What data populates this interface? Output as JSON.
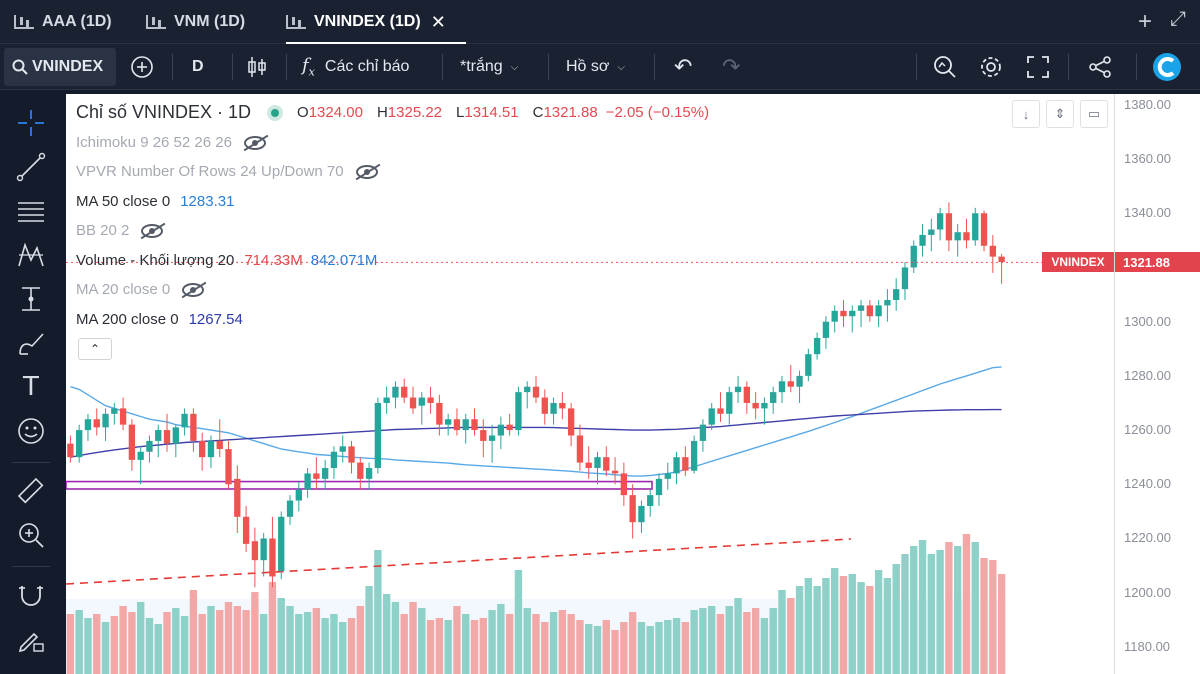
{
  "tabs": [
    {
      "label": "AAA (1D)",
      "active": false
    },
    {
      "label": "VNM (1D)",
      "active": false
    },
    {
      "label": "VNINDEX (1D)",
      "active": true
    }
  ],
  "tab_actions": {
    "add": "+",
    "expand": "⤢"
  },
  "toolbar": {
    "symbol": "VNINDEX",
    "interval": "D",
    "indicators_label": "Các chỉ báo",
    "theme_label": "*trắng",
    "profile_label": "Hồ sơ"
  },
  "legend": {
    "title": "Chỉ số VNINDEX · 1D",
    "open_key": "O",
    "open": "1324.00",
    "high_key": "H",
    "high": "1325.22",
    "low_key": "L",
    "low": "1314.51",
    "close_key": "C",
    "close": "1321.88",
    "change": "−2.05 (−0.15%)",
    "ichimoku": "Ichimoku 9 26 52 26 26",
    "vpvr": "VPVR Number Of Rows 24 Up/Down 70",
    "ma50_label": "MA 50 close 0",
    "ma50_value": "1283.31",
    "bb": "BB 20 2",
    "volume_label": "Volume - Khối lượng 20",
    "volume_value": "714.33M",
    "volume_ma": "842.071M",
    "ma20": "MA 20 close 0",
    "ma200_label": "MA 200 close 0",
    "ma200_value": "1267.54",
    "collapse": "⌃"
  },
  "price_axis": {
    "ticks": [
      "1380.00",
      "1360.00",
      "1340.00",
      "1320.00",
      "1300.00",
      "1280.00",
      "1260.00",
      "1240.00",
      "1220.00",
      "1200.00",
      "1180.00"
    ],
    "last_name": "VNINDEX",
    "last_value": "1321.88"
  },
  "colors": {
    "up": "#26a69a",
    "down": "#ef5350",
    "ma50": "#5aa9e6",
    "ma200": "#3f3fa8",
    "zone": "#9c27b0",
    "trend": "#e53935"
  },
  "chart_data": {
    "type": "candlestick",
    "title": "Chỉ số VNINDEX · 1D",
    "ylim": [
      1170,
      1384
    ],
    "candles": [
      [
        1255,
        1258,
        1248,
        1250
      ],
      [
        1250,
        1262,
        1248,
        1260
      ],
      [
        1260,
        1266,
        1256,
        1264
      ],
      [
        1264,
        1268,
        1258,
        1261
      ],
      [
        1261,
        1268,
        1256,
        1266
      ],
      [
        1266,
        1270,
        1262,
        1268
      ],
      [
        1268,
        1272,
        1260,
        1262
      ],
      [
        1262,
        1264,
        1245,
        1249
      ],
      [
        1249,
        1254,
        1240,
        1252
      ],
      [
        1252,
        1258,
        1248,
        1256
      ],
      [
        1256,
        1262,
        1250,
        1260
      ],
      [
        1260,
        1266,
        1252,
        1255
      ],
      [
        1255,
        1262,
        1250,
        1261
      ],
      [
        1261,
        1268,
        1258,
        1266
      ],
      [
        1266,
        1268,
        1252,
        1256
      ],
      [
        1256,
        1259,
        1245,
        1250
      ],
      [
        1250,
        1258,
        1246,
        1256
      ],
      [
        1256,
        1264,
        1250,
        1253
      ],
      [
        1253,
        1256,
        1238,
        1240
      ],
      [
        1242,
        1247,
        1222,
        1228
      ],
      [
        1228,
        1232,
        1215,
        1218
      ],
      [
        1219,
        1224,
        1202,
        1212
      ],
      [
        1212,
        1222,
        1206,
        1220
      ],
      [
        1220,
        1228,
        1202,
        1206
      ],
      [
        1208,
        1230,
        1205,
        1228
      ],
      [
        1228,
        1236,
        1225,
        1234
      ],
      [
        1234,
        1241,
        1230,
        1238
      ],
      [
        1238,
        1246,
        1235,
        1244
      ],
      [
        1244,
        1250,
        1238,
        1242
      ],
      [
        1242,
        1249,
        1238,
        1246
      ],
      [
        1246,
        1254,
        1242,
        1252
      ],
      [
        1252,
        1258,
        1248,
        1254
      ],
      [
        1254,
        1256,
        1244,
        1248
      ],
      [
        1248,
        1250,
        1238,
        1242
      ],
      [
        1242,
        1248,
        1238,
        1246
      ],
      [
        1246,
        1272,
        1244,
        1270
      ],
      [
        1270,
        1276,
        1266,
        1272
      ],
      [
        1272,
        1278,
        1268,
        1276
      ],
      [
        1276,
        1279,
        1270,
        1272
      ],
      [
        1272,
        1276,
        1266,
        1268
      ],
      [
        1269,
        1274,
        1262,
        1272
      ],
      [
        1272,
        1276,
        1266,
        1270
      ],
      [
        1270,
        1273,
        1258,
        1262
      ],
      [
        1262,
        1266,
        1258,
        1264
      ],
      [
        1264,
        1268,
        1258,
        1260
      ],
      [
        1260,
        1266,
        1255,
        1264
      ],
      [
        1264,
        1268,
        1258,
        1260
      ],
      [
        1260,
        1264,
        1250,
        1256
      ],
      [
        1256,
        1262,
        1248,
        1258
      ],
      [
        1258,
        1265,
        1253,
        1262
      ],
      [
        1262,
        1266,
        1258,
        1260
      ],
      [
        1260,
        1276,
        1258,
        1274
      ],
      [
        1274,
        1278,
        1268,
        1276
      ],
      [
        1276,
        1280,
        1270,
        1272
      ],
      [
        1272,
        1275,
        1262,
        1266
      ],
      [
        1266,
        1272,
        1262,
        1270
      ],
      [
        1270,
        1274,
        1264,
        1268
      ],
      [
        1268,
        1270,
        1254,
        1258
      ],
      [
        1258,
        1262,
        1245,
        1248
      ],
      [
        1248,
        1254,
        1242,
        1246
      ],
      [
        1246,
        1252,
        1240,
        1250
      ],
      [
        1250,
        1254,
        1243,
        1245
      ],
      [
        1245,
        1250,
        1240,
        1244
      ],
      [
        1244,
        1248,
        1232,
        1236
      ],
      [
        1236,
        1240,
        1220,
        1226
      ],
      [
        1226,
        1234,
        1222,
        1232
      ],
      [
        1232,
        1238,
        1228,
        1236
      ],
      [
        1236,
        1244,
        1232,
        1242
      ],
      [
        1242,
        1248,
        1238,
        1244
      ],
      [
        1244,
        1252,
        1240,
        1250
      ],
      [
        1250,
        1254,
        1243,
        1245
      ],
      [
        1245,
        1258,
        1244,
        1256
      ],
      [
        1256,
        1264,
        1252,
        1262
      ],
      [
        1262,
        1270,
        1260,
        1268
      ],
      [
        1268,
        1274,
        1263,
        1266
      ],
      [
        1266,
        1276,
        1262,
        1274
      ],
      [
        1274,
        1280,
        1270,
        1276
      ],
      [
        1276,
        1278,
        1266,
        1270
      ],
      [
        1270,
        1274,
        1264,
        1268
      ],
      [
        1268,
        1272,
        1262,
        1270
      ],
      [
        1270,
        1276,
        1266,
        1274
      ],
      [
        1274,
        1280,
        1270,
        1278
      ],
      [
        1278,
        1284,
        1274,
        1276
      ],
      [
        1276,
        1282,
        1270,
        1280
      ],
      [
        1280,
        1290,
        1278,
        1288
      ],
      [
        1288,
        1296,
        1286,
        1294
      ],
      [
        1294,
        1302,
        1290,
        1300
      ],
      [
        1300,
        1306,
        1296,
        1304
      ],
      [
        1304,
        1308,
        1298,
        1302
      ],
      [
        1302,
        1306,
        1296,
        1304
      ],
      [
        1304,
        1308,
        1298,
        1306
      ],
      [
        1306,
        1308,
        1300,
        1302
      ],
      [
        1302,
        1308,
        1298,
        1306
      ],
      [
        1306,
        1312,
        1300,
        1308
      ],
      [
        1308,
        1316,
        1304,
        1312
      ],
      [
        1312,
        1322,
        1308,
        1320
      ],
      [
        1320,
        1330,
        1318,
        1328
      ],
      [
        1328,
        1336,
        1324,
        1332
      ],
      [
        1332,
        1338,
        1326,
        1334
      ],
      [
        1334,
        1342,
        1330,
        1340
      ],
      [
        1340,
        1344,
        1326,
        1330
      ],
      [
        1330,
        1336,
        1324,
        1333
      ],
      [
        1333,
        1338,
        1327,
        1330
      ],
      [
        1330,
        1342,
        1328,
        1340
      ],
      [
        1340,
        1341,
        1326,
        1328
      ],
      [
        1328,
        1332,
        1318,
        1324
      ],
      [
        1324,
        1325,
        1314,
        1322
      ]
    ],
    "volume": [
      {
        "v": 0.3,
        "up": false
      },
      {
        "v": 0.32,
        "up": true
      },
      {
        "v": 0.28,
        "up": true
      },
      {
        "v": 0.3,
        "up": false
      },
      {
        "v": 0.26,
        "up": true
      },
      {
        "v": 0.29,
        "up": false
      },
      {
        "v": 0.34,
        "up": false
      },
      {
        "v": 0.31,
        "up": false
      },
      {
        "v": 0.36,
        "up": true
      },
      {
        "v": 0.28,
        "up": true
      },
      {
        "v": 0.25,
        "up": true
      },
      {
        "v": 0.31,
        "up": false
      },
      {
        "v": 0.33,
        "up": true
      },
      {
        "v": 0.29,
        "up": true
      },
      {
        "v": 0.42,
        "up": false
      },
      {
        "v": 0.3,
        "up": false
      },
      {
        "v": 0.34,
        "up": true
      },
      {
        "v": 0.32,
        "up": false
      },
      {
        "v": 0.36,
        "up": false
      },
      {
        "v": 0.34,
        "up": false
      },
      {
        "v": 0.32,
        "up": false
      },
      {
        "v": 0.41,
        "up": false
      },
      {
        "v": 0.3,
        "up": true
      },
      {
        "v": 0.46,
        "up": false
      },
      {
        "v": 0.38,
        "up": true
      },
      {
        "v": 0.34,
        "up": true
      },
      {
        "v": 0.3,
        "up": true
      },
      {
        "v": 0.31,
        "up": true
      },
      {
        "v": 0.33,
        "up": false
      },
      {
        "v": 0.28,
        "up": true
      },
      {
        "v": 0.3,
        "up": true
      },
      {
        "v": 0.26,
        "up": true
      },
      {
        "v": 0.28,
        "up": false
      },
      {
        "v": 0.34,
        "up": false
      },
      {
        "v": 0.44,
        "up": true
      },
      {
        "v": 0.62,
        "up": true
      },
      {
        "v": 0.4,
        "up": true
      },
      {
        "v": 0.36,
        "up": true
      },
      {
        "v": 0.3,
        "up": false
      },
      {
        "v": 0.36,
        "up": false
      },
      {
        "v": 0.33,
        "up": true
      },
      {
        "v": 0.27,
        "up": false
      },
      {
        "v": 0.28,
        "up": false
      },
      {
        "v": 0.27,
        "up": true
      },
      {
        "v": 0.34,
        "up": false
      },
      {
        "v": 0.3,
        "up": true
      },
      {
        "v": 0.27,
        "up": false
      },
      {
        "v": 0.28,
        "up": false
      },
      {
        "v": 0.32,
        "up": true
      },
      {
        "v": 0.35,
        "up": true
      },
      {
        "v": 0.3,
        "up": false
      },
      {
        "v": 0.52,
        "up": true
      },
      {
        "v": 0.33,
        "up": true
      },
      {
        "v": 0.3,
        "up": false
      },
      {
        "v": 0.26,
        "up": false
      },
      {
        "v": 0.31,
        "up": true
      },
      {
        "v": 0.32,
        "up": false
      },
      {
        "v": 0.3,
        "up": false
      },
      {
        "v": 0.27,
        "up": false
      },
      {
        "v": 0.25,
        "up": true
      },
      {
        "v": 0.24,
        "up": true
      },
      {
        "v": 0.27,
        "up": false
      },
      {
        "v": 0.22,
        "up": false
      },
      {
        "v": 0.26,
        "up": false
      },
      {
        "v": 0.31,
        "up": false
      },
      {
        "v": 0.26,
        "up": true
      },
      {
        "v": 0.24,
        "up": true
      },
      {
        "v": 0.26,
        "up": true
      },
      {
        "v": 0.27,
        "up": true
      },
      {
        "v": 0.28,
        "up": true
      },
      {
        "v": 0.26,
        "up": false
      },
      {
        "v": 0.32,
        "up": true
      },
      {
        "v": 0.33,
        "up": true
      },
      {
        "v": 0.34,
        "up": true
      },
      {
        "v": 0.3,
        "up": false
      },
      {
        "v": 0.34,
        "up": true
      },
      {
        "v": 0.38,
        "up": true
      },
      {
        "v": 0.31,
        "up": false
      },
      {
        "v": 0.33,
        "up": false
      },
      {
        "v": 0.28,
        "up": true
      },
      {
        "v": 0.33,
        "up": true
      },
      {
        "v": 0.42,
        "up": true
      },
      {
        "v": 0.38,
        "up": false
      },
      {
        "v": 0.44,
        "up": true
      },
      {
        "v": 0.48,
        "up": true
      },
      {
        "v": 0.44,
        "up": true
      },
      {
        "v": 0.48,
        "up": true
      },
      {
        "v": 0.53,
        "up": true
      },
      {
        "v": 0.49,
        "up": false
      },
      {
        "v": 0.5,
        "up": true
      },
      {
        "v": 0.46,
        "up": true
      },
      {
        "v": 0.44,
        "up": false
      },
      {
        "v": 0.52,
        "up": true
      },
      {
        "v": 0.48,
        "up": true
      },
      {
        "v": 0.55,
        "up": true
      },
      {
        "v": 0.6,
        "up": true
      },
      {
        "v": 0.64,
        "up": true
      },
      {
        "v": 0.67,
        "up": true
      },
      {
        "v": 0.6,
        "up": true
      },
      {
        "v": 0.62,
        "up": true
      },
      {
        "v": 0.66,
        "up": false
      },
      {
        "v": 0.64,
        "up": true
      },
      {
        "v": 0.7,
        "up": false
      },
      {
        "v": 0.66,
        "up": true
      },
      {
        "v": 0.58,
        "up": false
      },
      {
        "v": 0.57,
        "up": false
      },
      {
        "v": 0.5,
        "up": false
      }
    ],
    "ma50": [
      1276,
      1275,
      1273,
      1271,
      1269,
      1268,
      1267,
      1266,
      1265,
      1264,
      1263.5,
      1263,
      1262,
      1261.5,
      1261,
      1260.5,
      1260,
      1259.5,
      1259,
      1258,
      1257,
      1256,
      1255,
      1254,
      1253,
      1252.5,
      1252,
      1251.5,
      1251,
      1250.8,
      1250.5,
      1250.3,
      1250,
      1249.8,
      1249.6,
      1249.5,
      1249.3,
      1249,
      1248.8,
      1248.6,
      1248.4,
      1248.2,
      1248,
      1247.8,
      1247.5,
      1247.2,
      1247,
      1246.8,
      1246.6,
      1246.4,
      1246.2,
      1246,
      1245.8,
      1245.6,
      1245.4,
      1245.2,
      1245,
      1244.8,
      1244.5,
      1244.2,
      1244,
      1243.8,
      1243.5,
      1243.3,
      1243,
      1243,
      1243.2,
      1243.6,
      1244,
      1244.6,
      1245.5,
      1246.5,
      1247.5,
      1248.5,
      1249.5,
      1250.5,
      1251.5,
      1252.5,
      1253.5,
      1254.5,
      1255.5,
      1256.5,
      1257.5,
      1258.5,
      1259.5,
      1260.6,
      1261.7,
      1262.8,
      1263.9,
      1265,
      1266.2,
      1267.4,
      1268.6,
      1269.8,
      1271,
      1272.2,
      1273.4,
      1274.6,
      1275.8,
      1277,
      1278,
      1279,
      1280,
      1281,
      1282,
      1283,
      1283.3
    ],
    "ma200": [
      1250,
      1250.6,
      1251.2,
      1251.7,
      1252.2,
      1252.7,
      1253.1,
      1253.5,
      1253.9,
      1254.2,
      1254.5,
      1254.8,
      1255.1,
      1255.4,
      1255.6,
      1255.8,
      1256,
      1256.2,
      1256.4,
      1256.6,
      1256.8,
      1257,
      1257.2,
      1257.4,
      1257.6,
      1257.8,
      1258,
      1258.2,
      1258.4,
      1258.6,
      1258.8,
      1259,
      1259.2,
      1259.4,
      1259.6,
      1259.8,
      1260,
      1260.2,
      1260.3,
      1260.4,
      1260.5,
      1260.6,
      1260.7,
      1260.8,
      1260.9,
      1261,
      1261,
      1261,
      1261,
      1261,
      1261,
      1261,
      1261,
      1261,
      1261,
      1260.9,
      1260.8,
      1260.7,
      1260.6,
      1260.5,
      1260.4,
      1260.3,
      1260.2,
      1260.1,
      1260,
      1260,
      1260,
      1260.1,
      1260.2,
      1260.3,
      1260.5,
      1260.7,
      1260.9,
      1261.1,
      1261.3,
      1261.6,
      1261.9,
      1262.2,
      1262.5,
      1262.8,
      1263.1,
      1263.4,
      1263.7,
      1264,
      1264.3,
      1264.6,
      1264.9,
      1265.2,
      1265.4,
      1265.6,
      1265.8,
      1266,
      1266.2,
      1266.4,
      1266.6,
      1266.8,
      1267,
      1267.1,
      1267.2,
      1267.3,
      1267.4,
      1267.45,
      1267.5,
      1267.52,
      1267.53,
      1267.54,
      1267.54
    ],
    "support_zone": [
      1241,
      1239
    ],
    "last_price": 1321.88
  }
}
